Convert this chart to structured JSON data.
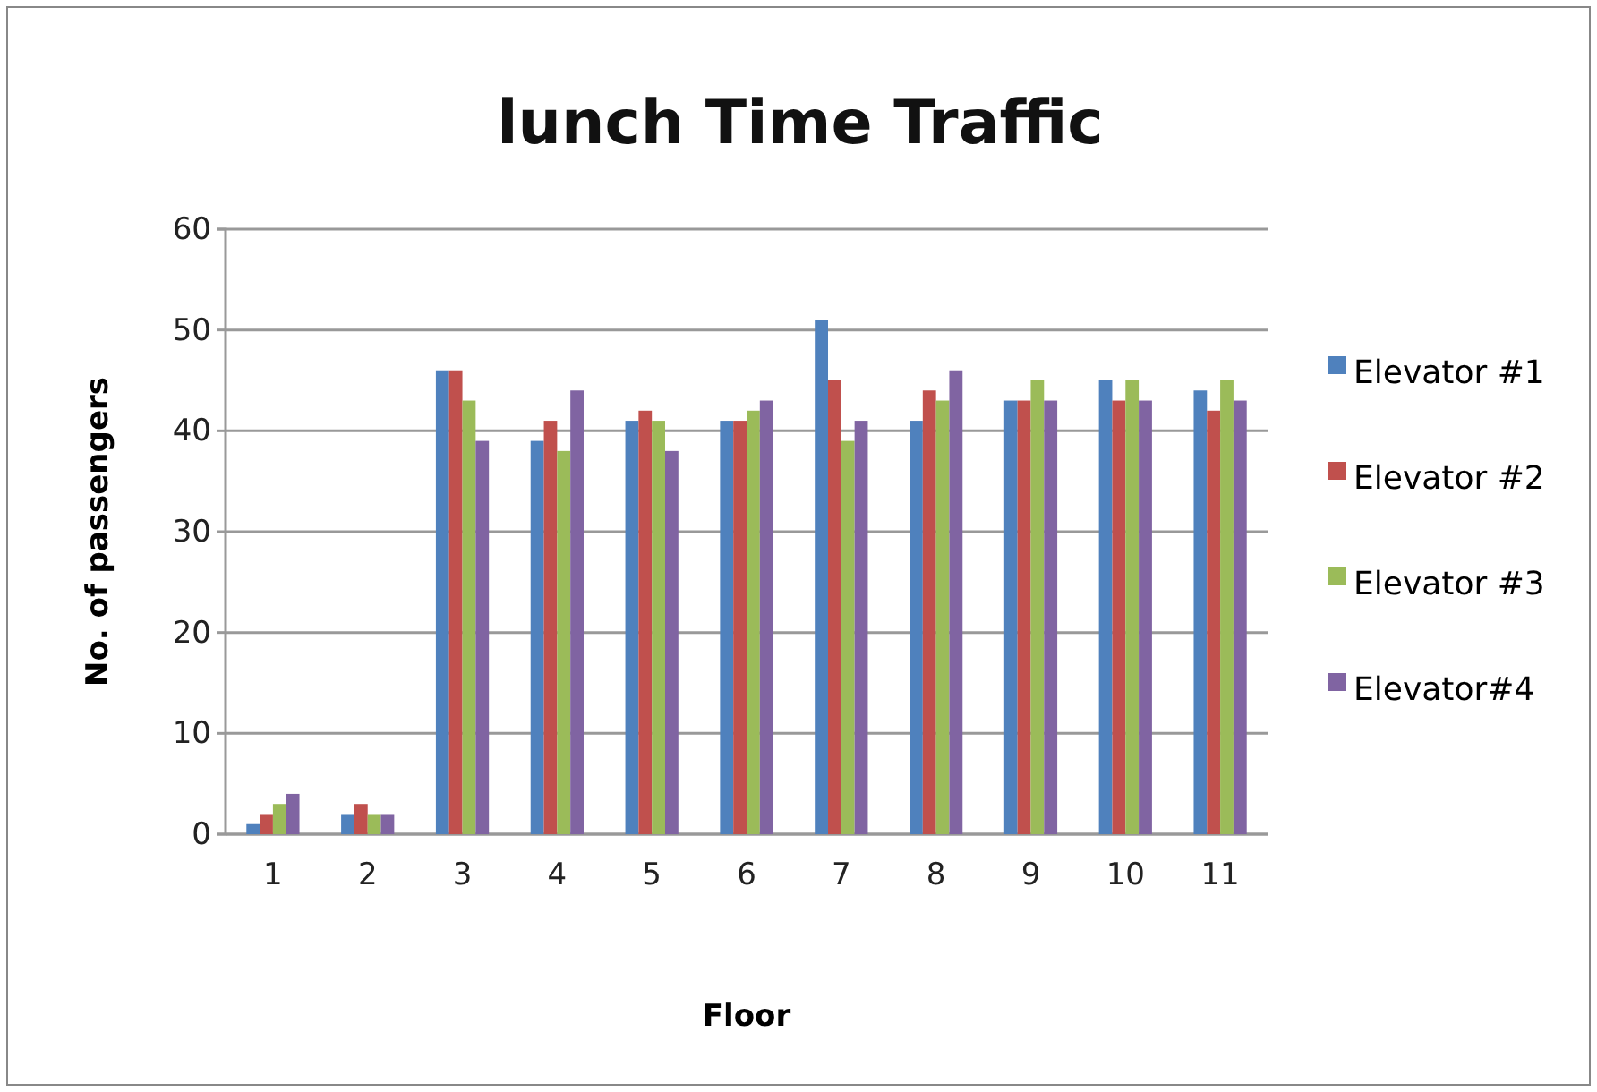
{
  "chart_data": {
    "type": "bar",
    "title": "lunch Time Traffic",
    "xlabel": "Floor",
    "ylabel": "No. of passengers",
    "categories": [
      "1",
      "2",
      "3",
      "4",
      "5",
      "6",
      "7",
      "8",
      "9",
      "10",
      "11"
    ],
    "series": [
      {
        "name": "Elevator #1",
        "color": "#4f81bd",
        "values": [
          1,
          2,
          46,
          39,
          41,
          41,
          51,
          41,
          43,
          45,
          44
        ]
      },
      {
        "name": "Elevator #2",
        "color": "#c0504d",
        "values": [
          2,
          3,
          46,
          41,
          42,
          41,
          45,
          44,
          43,
          43,
          42
        ]
      },
      {
        "name": "Elevator #3",
        "color": "#9bbb59",
        "values": [
          3,
          2,
          43,
          38,
          41,
          42,
          39,
          43,
          45,
          45,
          45
        ]
      },
      {
        "name": "Elevator#4",
        "color": "#8064a2",
        "values": [
          4,
          2,
          39,
          44,
          38,
          43,
          41,
          46,
          43,
          43,
          43
        ]
      }
    ],
    "ylim": [
      0,
      60
    ],
    "yticks": [
      0,
      10,
      20,
      30,
      40,
      50,
      60
    ],
    "grid": "y",
    "legend": "right"
  }
}
